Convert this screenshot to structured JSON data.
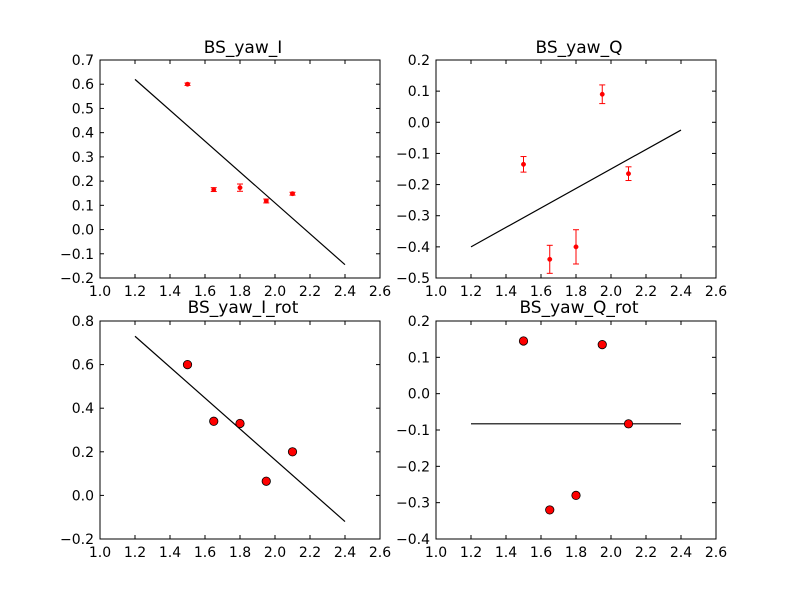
{
  "chart_data": [
    {
      "type": "scatter",
      "title": "BS_yaw_I",
      "xlim": [
        1.0,
        2.6
      ],
      "ylim": [
        -0.2,
        0.7
      ],
      "xticks": [
        "1.0",
        "1.2",
        "1.4",
        "1.6",
        "1.8",
        "2.0",
        "2.2",
        "2.4",
        "2.6"
      ],
      "yticks": [
        "−0.2",
        "−0.1",
        "0.0",
        "0.1",
        "0.2",
        "0.3",
        "0.4",
        "0.5",
        "0.6",
        "0.7"
      ],
      "grid": false,
      "marker": "small-dot-errorbar",
      "points": [
        {
          "x": 1.5,
          "y": 0.6,
          "err": 0.005
        },
        {
          "x": 1.65,
          "y": 0.165,
          "err": 0.008
        },
        {
          "x": 1.8,
          "y": 0.173,
          "err": 0.015
        },
        {
          "x": 1.95,
          "y": 0.118,
          "err": 0.008
        },
        {
          "x": 2.1,
          "y": 0.148,
          "err": 0.006
        }
      ],
      "fit_line": {
        "x": [
          1.2,
          2.4
        ],
        "y": [
          0.62,
          -0.145
        ]
      }
    },
    {
      "type": "scatter",
      "title": "BS_yaw_Q",
      "xlim": [
        1.0,
        2.6
      ],
      "ylim": [
        -0.5,
        0.2
      ],
      "xticks": [
        "1.0",
        "1.2",
        "1.4",
        "1.6",
        "1.8",
        "2.0",
        "2.2",
        "2.4",
        "2.6"
      ],
      "yticks": [
        "−0.5",
        "−0.4",
        "−0.3",
        "−0.2",
        "−0.1",
        "0.0",
        "0.1",
        "0.2"
      ],
      "grid": false,
      "marker": "small-dot-errorbar",
      "points": [
        {
          "x": 1.5,
          "y": -0.135,
          "err": 0.025
        },
        {
          "x": 1.65,
          "y": -0.44,
          "err": 0.045
        },
        {
          "x": 1.8,
          "y": -0.4,
          "err": 0.055
        },
        {
          "x": 1.95,
          "y": 0.09,
          "err": 0.03
        },
        {
          "x": 2.1,
          "y": -0.165,
          "err": 0.022
        }
      ],
      "fit_line": {
        "x": [
          1.2,
          2.4
        ],
        "y": [
          -0.4,
          -0.025
        ]
      }
    },
    {
      "type": "scatter",
      "title": "BS_yaw_I_rot",
      "xlim": [
        1.0,
        2.6
      ],
      "ylim": [
        -0.2,
        0.8
      ],
      "xticks": [
        "1.0",
        "1.2",
        "1.4",
        "1.6",
        "1.8",
        "2.0",
        "2.2",
        "2.4",
        "2.6"
      ],
      "yticks": [
        "−0.2",
        "0.0",
        "0.2",
        "0.4",
        "0.6",
        "0.8"
      ],
      "grid": false,
      "marker": "large-circle",
      "points": [
        {
          "x": 1.5,
          "y": 0.6
        },
        {
          "x": 1.65,
          "y": 0.34
        },
        {
          "x": 1.8,
          "y": 0.33
        },
        {
          "x": 1.95,
          "y": 0.065
        },
        {
          "x": 2.1,
          "y": 0.2
        }
      ],
      "fit_line": {
        "x": [
          1.2,
          2.4
        ],
        "y": [
          0.73,
          -0.12
        ]
      }
    },
    {
      "type": "scatter",
      "title": "BS_yaw_Q_rot",
      "xlim": [
        1.0,
        2.6
      ],
      "ylim": [
        -0.4,
        0.2
      ],
      "xticks": [
        "1.0",
        "1.2",
        "1.4",
        "1.6",
        "1.8",
        "2.0",
        "2.2",
        "2.4",
        "2.6"
      ],
      "yticks": [
        "−0.4",
        "−0.3",
        "−0.2",
        "−0.1",
        "0.0",
        "0.1",
        "0.2"
      ],
      "grid": false,
      "marker": "large-circle",
      "points": [
        {
          "x": 1.5,
          "y": 0.145
        },
        {
          "x": 1.65,
          "y": -0.32
        },
        {
          "x": 1.8,
          "y": -0.28
        },
        {
          "x": 1.95,
          "y": 0.135
        },
        {
          "x": 2.1,
          "y": -0.083
        }
      ],
      "fit_line": {
        "x": [
          1.2,
          2.4
        ],
        "y": [
          -0.083,
          -0.083
        ]
      }
    }
  ],
  "colors": {
    "point_fill": "#ff0000",
    "point_edge": "#000000",
    "errorbar": "#ff0000",
    "fit_line": "#000000",
    "axes": "#000000"
  }
}
